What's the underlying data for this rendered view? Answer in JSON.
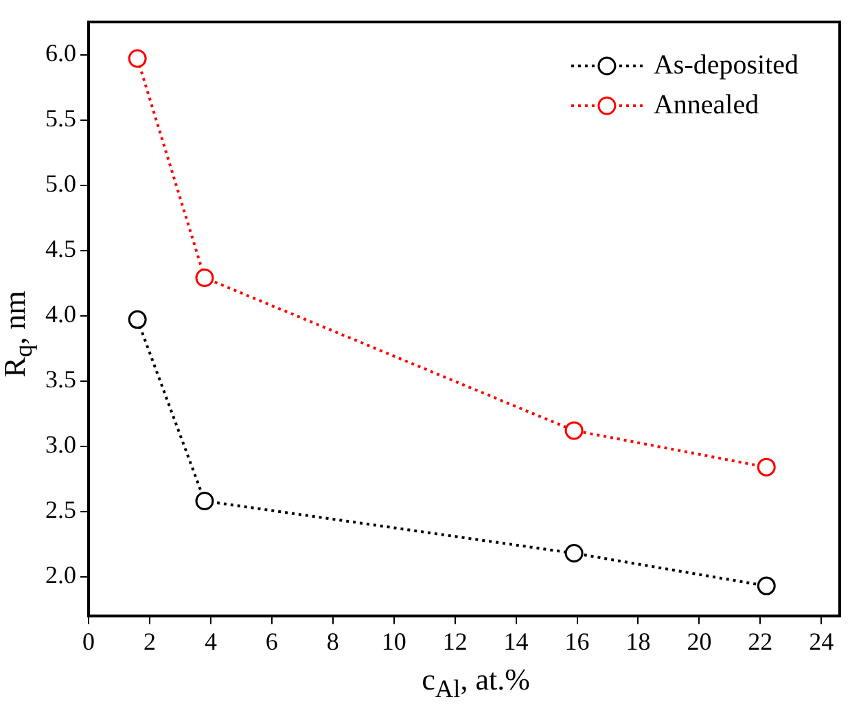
{
  "chart_data": {
    "type": "line",
    "xlabel": "c$_{Al}$, at.%",
    "ylabel": "R$_{q}$, nm",
    "x": [
      1.6,
      3.8,
      15.9,
      22.2
    ],
    "series": [
      {
        "name": "As-deposited",
        "color": "#000000",
        "values": [
          3.97,
          2.58,
          2.18,
          1.93
        ]
      },
      {
        "name": "Annealed",
        "color": "#ff0000",
        "values": [
          5.97,
          4.29,
          3.12,
          2.84
        ]
      }
    ],
    "xlim": [
      0,
      24.6
    ],
    "xticks": [
      0,
      2,
      4,
      6,
      8,
      10,
      12,
      14,
      16,
      18,
      20,
      22,
      24
    ],
    "ylim": [
      1.7,
      6.25
    ],
    "yticks": [
      {
        "value": 2,
        "label": "2.0"
      },
      2.5,
      {
        "value": 3,
        "label": "3.0"
      },
      3.5,
      {
        "value": 4,
        "label": "4.0"
      },
      4.5,
      {
        "value": 5,
        "label": "5.0"
      },
      5.5,
      {
        "value": 6,
        "label": "6.0"
      }
    ],
    "grid": false,
    "legend": "top right",
    "marker": "circle",
    "line_style": "dotted"
  }
}
